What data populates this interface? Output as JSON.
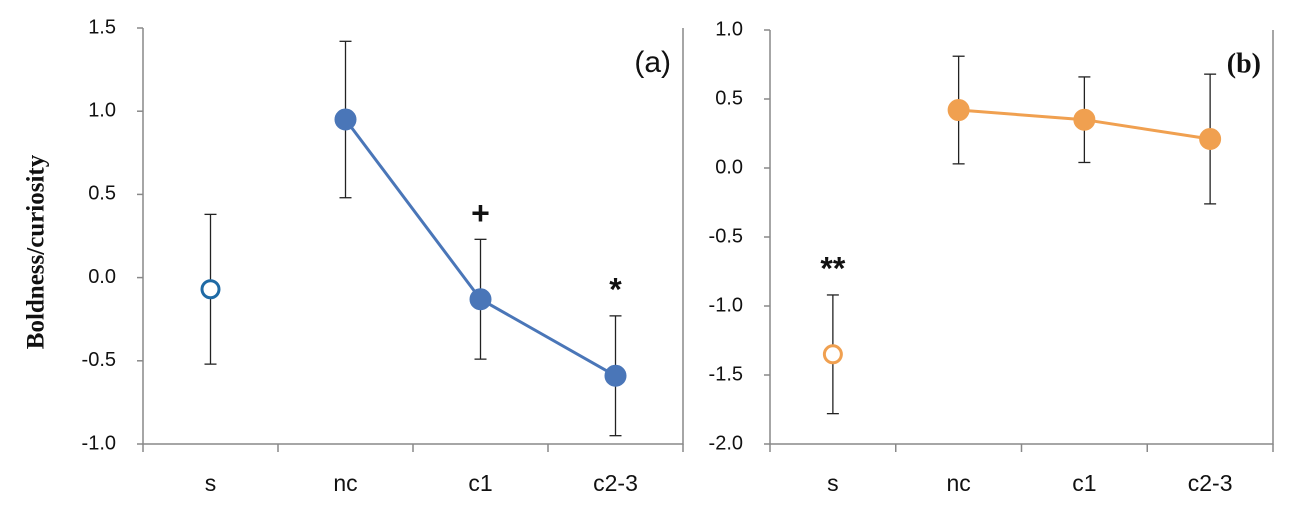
{
  "chart_data": [
    {
      "type": "line",
      "ylabel": "Boldness/curiosity",
      "panel_label": "(a)",
      "categories": [
        "s",
        "nc",
        "c1",
        "c2-3"
      ],
      "series": [
        {
          "color": "#ffffff",
          "edge_color": "#1f6aa5",
          "marker": "open",
          "values": [
            -0.07,
            null,
            null,
            null
          ],
          "errors": [
            0.45,
            null,
            null,
            null
          ]
        },
        {
          "color": "#4a76b8",
          "marker": "filled",
          "values": [
            null,
            0.95,
            -0.13,
            -0.59
          ],
          "errors": [
            null,
            0.47,
            0.36,
            0.36
          ]
        }
      ],
      "ylim": [
        -1,
        1.5
      ],
      "yticks": [
        {
          "value": -1,
          "label": "-1.0"
        },
        {
          "value": -0.5,
          "label": "-0.5"
        },
        {
          "value": 0,
          "label": "0.0"
        },
        {
          "value": 0.5,
          "label": "0.5"
        },
        {
          "value": 1,
          "label": "1.0"
        },
        {
          "value": 1.5,
          "label": "1.5"
        }
      ],
      "annotations": [
        {
          "text": "+",
          "category": "c1"
        },
        {
          "text": "*",
          "category": "c2-3"
        }
      ]
    },
    {
      "type": "line",
      "panel_label": "(b)",
      "categories": [
        "s",
        "nc",
        "c1",
        "c2-3"
      ],
      "series": [
        {
          "color": "#ffffff",
          "edge_color": "#f0a050",
          "marker": "open",
          "values": [
            -1.35,
            null,
            null,
            null
          ],
          "errors": [
            0.43,
            null,
            null,
            null
          ]
        },
        {
          "color": "#f0a050",
          "marker": "filled",
          "values": [
            null,
            0.42,
            0.35,
            0.21
          ],
          "errors": [
            null,
            0.39,
            0.31,
            0.47
          ]
        }
      ],
      "ylim": [
        -2,
        1
      ],
      "yticks": [
        {
          "value": -2,
          "label": "-2.0"
        },
        {
          "value": -1.5,
          "label": "-1.5"
        },
        {
          "value": -1,
          "label": "-1.0"
        },
        {
          "value": -0.5,
          "label": "-0.5"
        },
        {
          "value": 0,
          "label": "0.0"
        },
        {
          "value": 0.5,
          "label": "0.5"
        },
        {
          "value": 1,
          "label": "1.0"
        }
      ],
      "annotations": [
        {
          "text": "**",
          "category": "s"
        }
      ]
    }
  ]
}
